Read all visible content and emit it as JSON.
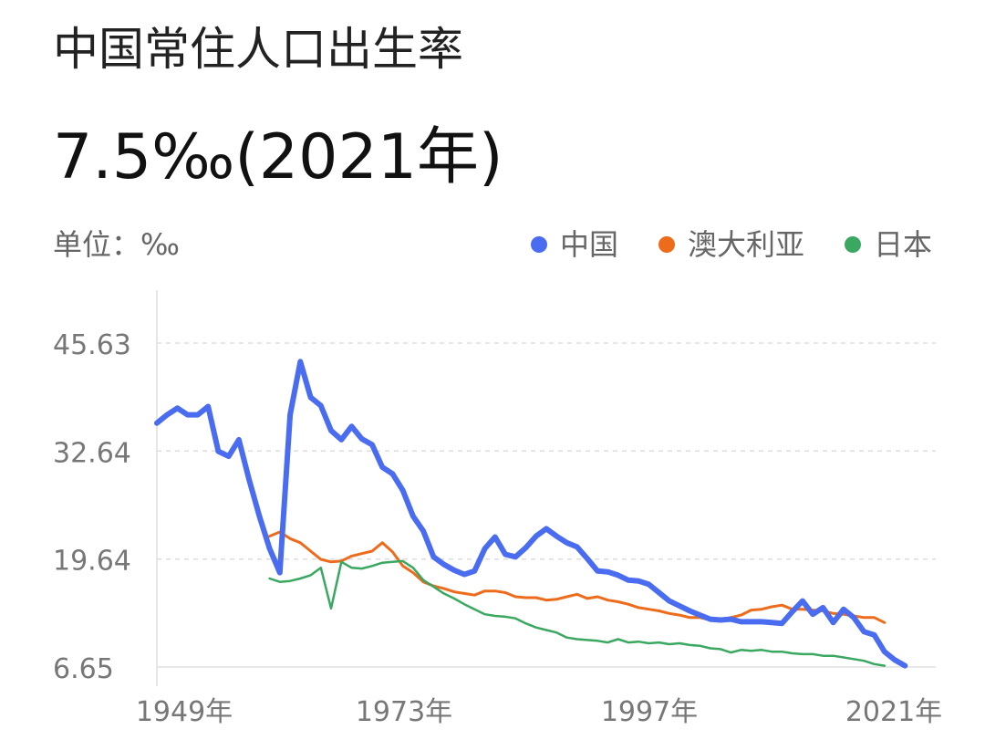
{
  "header": {
    "title": "中国常住人口出生率",
    "headline": "7.5‰(2021年)",
    "unit": "单位：‰"
  },
  "legend": [
    {
      "label": "中国",
      "color": "#4a6cf0"
    },
    {
      "label": "澳大利亚",
      "color": "#ee6b1c"
    },
    {
      "label": "日本",
      "color": "#3aa860"
    }
  ],
  "chart_data": {
    "type": "line",
    "x_ticks": [
      "1949年",
      "1973年",
      "1997年",
      "2021年"
    ],
    "y_ticks": [
      6.65,
      19.64,
      32.64,
      45.63
    ],
    "xlim": [
      1949,
      2025
    ],
    "ylim": [
      6.65,
      45.63
    ],
    "grid": "horizontal-dashed",
    "legend_position": "top-right",
    "series": [
      {
        "name": "中国",
        "color": "#4a6cf0",
        "x": [
          1949,
          1950,
          1951,
          1952,
          1953,
          1954,
          1955,
          1956,
          1957,
          1958,
          1959,
          1960,
          1961,
          1962,
          1963,
          1964,
          1965,
          1966,
          1967,
          1968,
          1969,
          1970,
          1971,
          1972,
          1973,
          1974,
          1975,
          1976,
          1977,
          1978,
          1979,
          1980,
          1981,
          1982,
          1983,
          1984,
          1985,
          1986,
          1987,
          1988,
          1989,
          1990,
          1991,
          1992,
          1993,
          1994,
          1995,
          1996,
          1997,
          1998,
          1999,
          2000,
          2001,
          2002,
          2003,
          2004,
          2005,
          2006,
          2007,
          2008,
          2009,
          2010,
          2011,
          2012,
          2013,
          2014,
          2015,
          2016,
          2017,
          2018,
          2019,
          2020,
          2021,
          2022
        ],
        "y": [
          36.0,
          37.0,
          37.8,
          37.0,
          37.0,
          38.0,
          32.6,
          32.0,
          34.0,
          29.2,
          24.8,
          20.9,
          18.0,
          37.0,
          43.4,
          39.1,
          38.1,
          35.1,
          34.0,
          35.6,
          34.1,
          33.4,
          30.7,
          29.9,
          27.9,
          24.8,
          23.0,
          19.9,
          19.0,
          18.3,
          17.8,
          18.2,
          20.9,
          22.3,
          20.2,
          19.9,
          21.0,
          22.4,
          23.3,
          22.4,
          21.6,
          21.1,
          19.7,
          18.2,
          18.1,
          17.7,
          17.1,
          17.0,
          16.6,
          15.6,
          14.6,
          14.0,
          13.4,
          12.9,
          12.4,
          12.3,
          12.4,
          12.1,
          12.1,
          12.1,
          12.0,
          11.9,
          13.3,
          14.6,
          13.0,
          13.8,
          12.0,
          13.6,
          12.6,
          10.9,
          10.5,
          8.5,
          7.5,
          6.8
        ]
      },
      {
        "name": "澳大利亚",
        "color": "#ee6b1c",
        "x": [
          1960,
          1961,
          1962,
          1963,
          1964,
          1965,
          1966,
          1967,
          1968,
          1969,
          1970,
          1971,
          1972,
          1973,
          1974,
          1975,
          1976,
          1977,
          1978,
          1979,
          1980,
          1981,
          1982,
          1983,
          1984,
          1985,
          1986,
          1987,
          1988,
          1989,
          1990,
          1991,
          1992,
          1993,
          1994,
          1995,
          1996,
          1997,
          1998,
          1999,
          2000,
          2001,
          2002,
          2003,
          2004,
          2005,
          2006,
          2007,
          2008,
          2009,
          2010,
          2011,
          2012,
          2013,
          2014,
          2015,
          2016,
          2017,
          2018,
          2019,
          2020
        ],
        "y": [
          22.4,
          22.9,
          22.1,
          21.6,
          20.6,
          19.6,
          19.3,
          19.4,
          20.0,
          20.3,
          20.6,
          21.6,
          20.5,
          18.8,
          18.0,
          16.9,
          16.4,
          16.1,
          15.7,
          15.5,
          15.3,
          15.8,
          15.8,
          15.6,
          15.1,
          15.0,
          15.0,
          14.7,
          14.8,
          15.1,
          15.4,
          14.9,
          15.1,
          14.7,
          14.5,
          14.2,
          13.8,
          13.6,
          13.4,
          13.1,
          12.9,
          12.6,
          12.6,
          12.3,
          12.3,
          12.6,
          12.9,
          13.5,
          13.6,
          13.9,
          14.1,
          13.6,
          13.6,
          13.5,
          13.4,
          13.1,
          13.0,
          12.8,
          12.6,
          12.6,
          12.0
        ]
      },
      {
        "name": "日本",
        "color": "#3aa860",
        "x": [
          1960,
          1961,
          1962,
          1963,
          1964,
          1965,
          1966,
          1967,
          1968,
          1969,
          1970,
          1971,
          1972,
          1973,
          1974,
          1975,
          1976,
          1977,
          1978,
          1979,
          1980,
          1981,
          1982,
          1983,
          1984,
          1985,
          1986,
          1987,
          1988,
          1989,
          1990,
          1991,
          1992,
          1993,
          1994,
          1995,
          1996,
          1997,
          1998,
          1999,
          2000,
          2001,
          2002,
          2003,
          2004,
          2005,
          2006,
          2007,
          2008,
          2009,
          2010,
          2011,
          2012,
          2013,
          2014,
          2015,
          2016,
          2017,
          2018,
          2019,
          2020
        ],
        "y": [
          17.3,
          16.9,
          17.0,
          17.3,
          17.7,
          18.6,
          13.7,
          19.3,
          18.6,
          18.5,
          18.8,
          19.2,
          19.3,
          19.4,
          18.6,
          17.1,
          16.3,
          15.5,
          14.9,
          14.2,
          13.6,
          13.0,
          12.8,
          12.7,
          12.5,
          11.9,
          11.4,
          11.1,
          10.8,
          10.2,
          10.0,
          9.9,
          9.8,
          9.6,
          10.0,
          9.6,
          9.7,
          9.5,
          9.6,
          9.4,
          9.5,
          9.3,
          9.2,
          8.9,
          8.8,
          8.4,
          8.7,
          8.6,
          8.7,
          8.5,
          8.5,
          8.3,
          8.2,
          8.2,
          8.0,
          8.0,
          7.8,
          7.6,
          7.4,
          7.0,
          6.8
        ]
      }
    ]
  }
}
